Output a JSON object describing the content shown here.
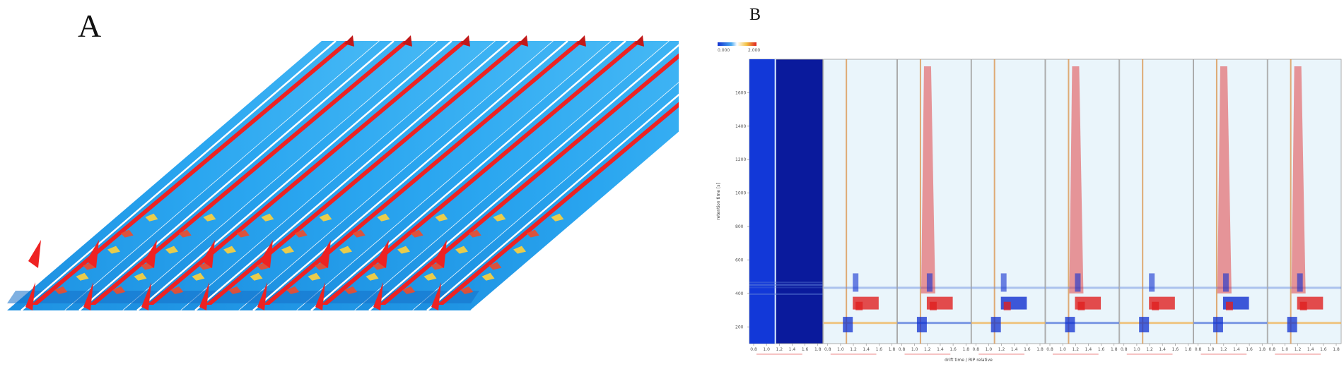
{
  "panels": {
    "a_label": "A",
    "b_label": "B"
  },
  "chart_data": [
    {
      "type": "heatmap",
      "panel": "A",
      "title": "",
      "view": "3D stacked topographic GC-IMS spectra",
      "sample_count": 8,
      "colors": {
        "background": "#2aa6f0",
        "peak": "#ee2222",
        "separator": "#ffffff"
      }
    },
    {
      "type": "heatmap",
      "panel": "B",
      "title": "",
      "xlabel": "drift time / RIP relative",
      "ylabel": "retention time [s]",
      "x_ticks": [
        "0.8",
        "1.0",
        "1.2",
        "1.4",
        "1.6",
        "1.8"
      ],
      "y_ticks": [
        "200",
        "400",
        "600",
        "800",
        "1000",
        "1200",
        "1400",
        "1600"
      ],
      "colorbar_range": [
        "0.000",
        "2.000"
      ],
      "reference_panel_color": "#0a1a9c",
      "difference_panel_count": 7,
      "colors": {
        "positive": "#e02020",
        "negative": "#1030d0",
        "neutral": "#eaf5fb",
        "rip_line": "#d98a3a"
      }
    }
  ]
}
